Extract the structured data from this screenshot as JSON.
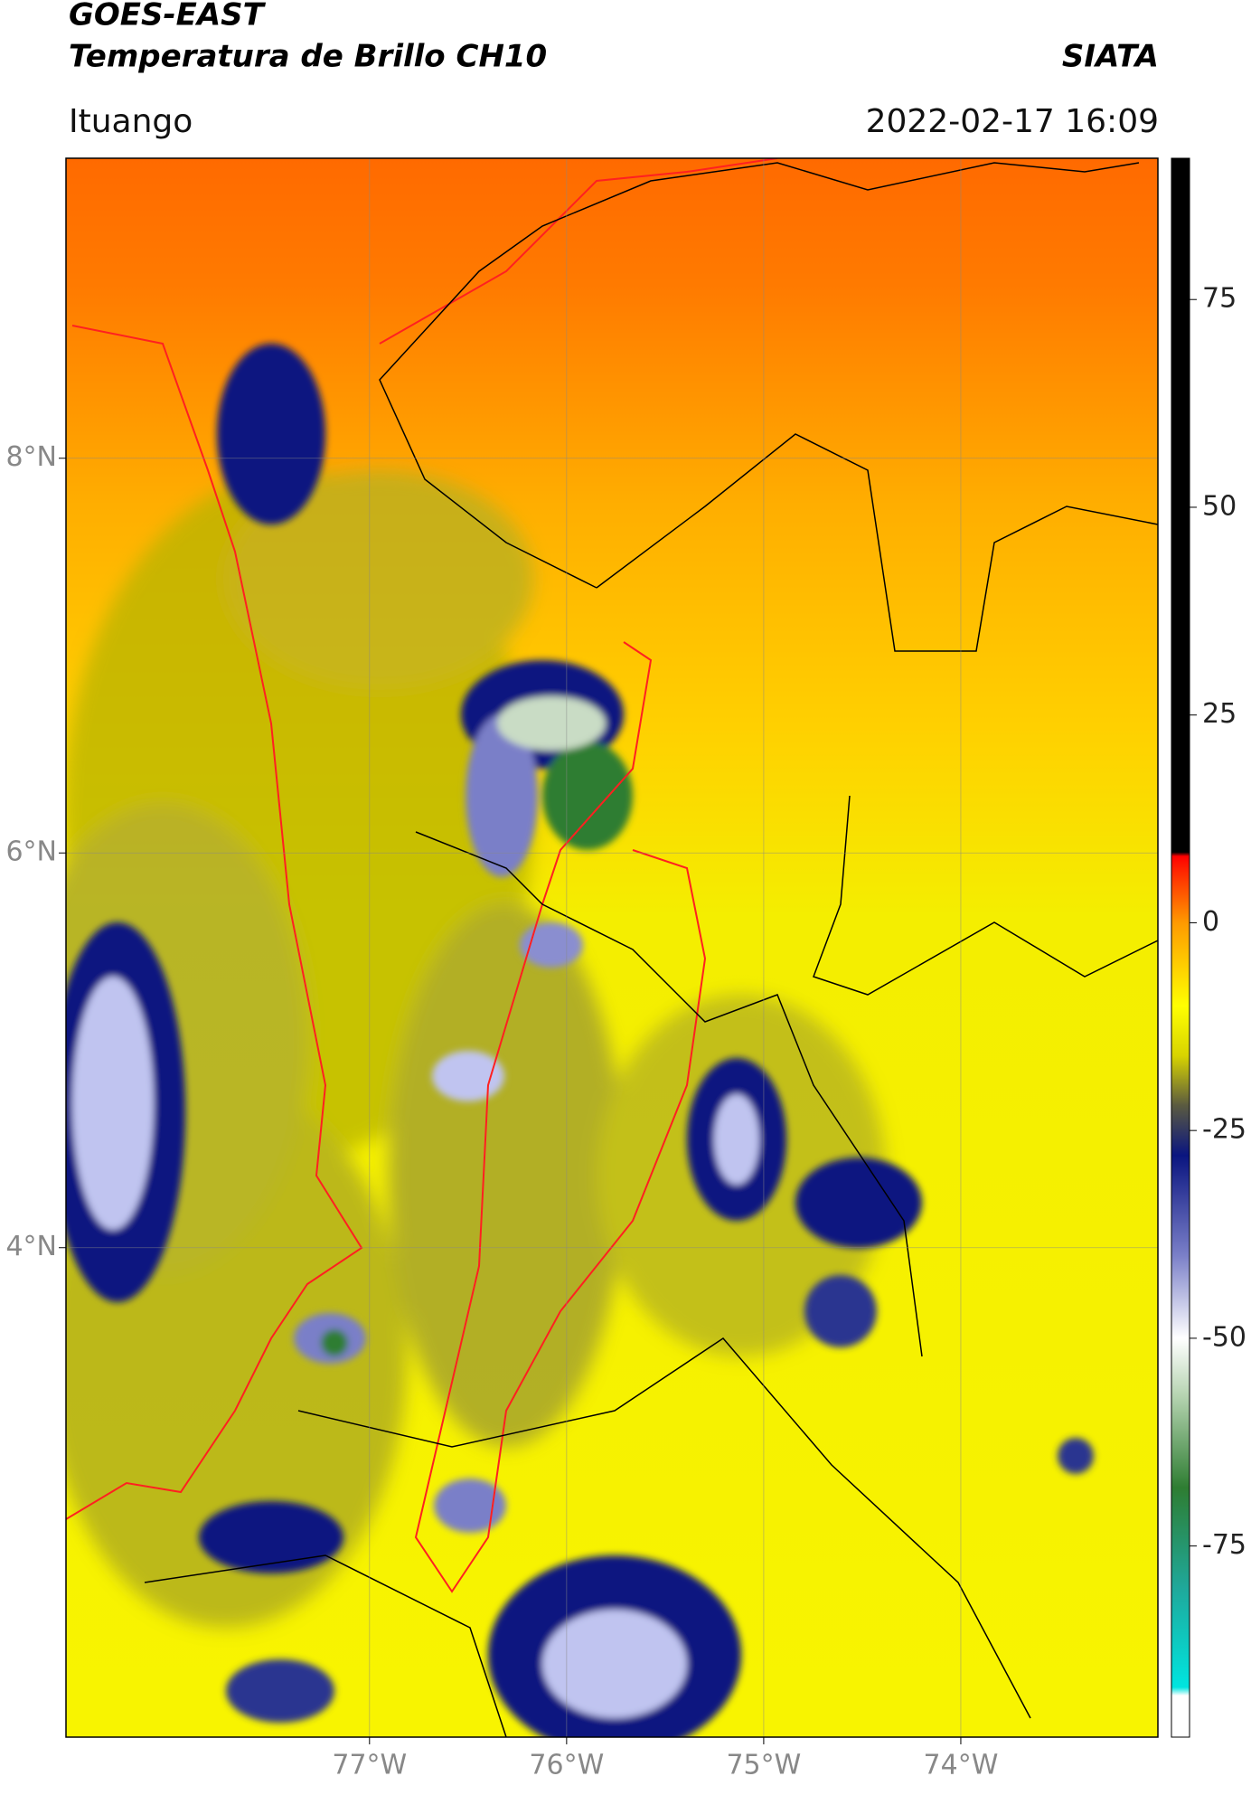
{
  "header": {
    "title": "GOES-EAST",
    "subtitle": "Temperatura de Brillo CH10",
    "brand": "SIATA",
    "location": "Ituango",
    "datetime": "2022-02-17 16:09"
  },
  "map": {
    "lon_range": [
      -78.54,
      -73.0
    ],
    "lat_range": [
      1.52,
      9.52
    ],
    "lon_ticks": [
      {
        "value": -77,
        "label": "77°W"
      },
      {
        "value": -76,
        "label": "76°W"
      },
      {
        "value": -75,
        "label": "75°W"
      },
      {
        "value": -74,
        "label": "74°W"
      }
    ],
    "lat_ticks": [
      {
        "value": 8,
        "label": "8°N"
      },
      {
        "value": 6,
        "label": "6°N"
      },
      {
        "value": 4,
        "label": "4°N"
      }
    ],
    "grid": true
  },
  "colorbar": {
    "range": [
      -98,
      92
    ],
    "ticks": [
      75,
      50,
      25,
      0,
      -25,
      -50,
      -75
    ],
    "stops": [
      {
        "value": -98,
        "color": "#ffffff"
      },
      {
        "value": -93,
        "color": "#ffffff"
      },
      {
        "value": -92,
        "color": "#00e5e0"
      },
      {
        "value": -80,
        "color": "#1fa89a"
      },
      {
        "value": -68,
        "color": "#2e7d32"
      },
      {
        "value": -57,
        "color": "#b5d3b0"
      },
      {
        "value": -50,
        "color": "#ffffff"
      },
      {
        "value": -40,
        "color": "#7a7fc8"
      },
      {
        "value": -28,
        "color": "#0a1580"
      },
      {
        "value": -22,
        "color": "#5a5a40"
      },
      {
        "value": -16,
        "color": "#d8d400"
      },
      {
        "value": -10,
        "color": "#ffff00"
      },
      {
        "value": 0,
        "color": "#ff9a00"
      },
      {
        "value": 6,
        "color": "#ff2a00"
      },
      {
        "value": 8,
        "color": "#ff0000"
      },
      {
        "value": 8.5,
        "color": "#000000"
      },
      {
        "value": 92,
        "color": "#000000"
      }
    ]
  }
}
